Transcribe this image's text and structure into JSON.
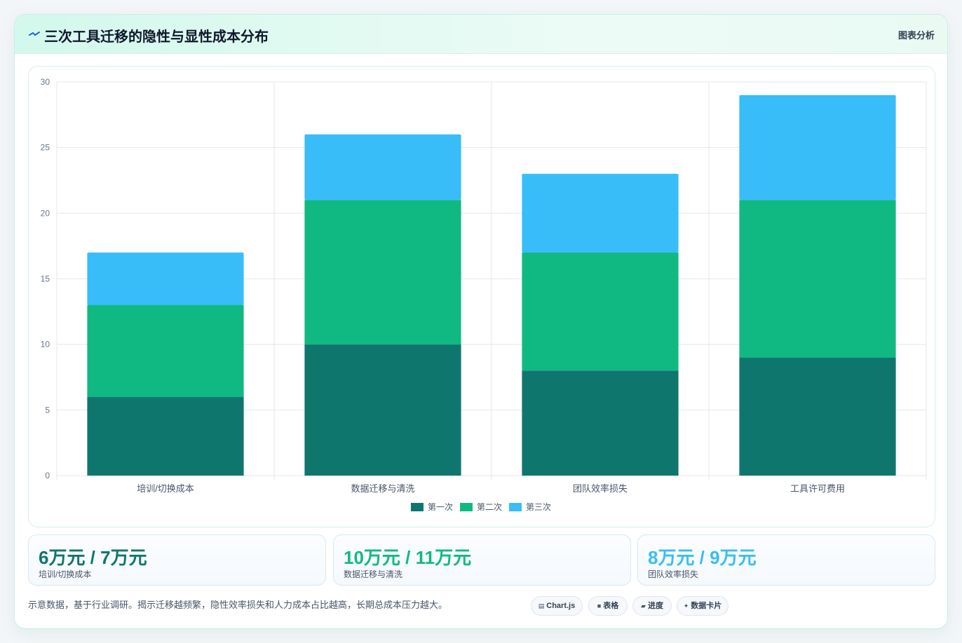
{
  "header": {
    "title": "三次工具迁移的隐性与显性成本分布",
    "tag": "图表分析",
    "icon": "lightning-icon"
  },
  "chart_data": {
    "type": "bar",
    "stacked": true,
    "categories": [
      "培训/切换成本",
      "数据迁移与清洗",
      "团队效率损失",
      "工具许可费用"
    ],
    "series": [
      {
        "name": "第一次",
        "color": "#0f766e",
        "values": [
          6,
          10,
          8,
          9
        ]
      },
      {
        "name": "第二次",
        "color": "#10b981",
        "values": [
          7,
          11,
          9,
          12
        ]
      },
      {
        "name": "第三次",
        "color": "#38bdf8",
        "values": [
          4,
          5,
          6,
          8
        ]
      }
    ],
    "ylim": [
      0,
      30
    ],
    "yticks": [
      0,
      5,
      10,
      15,
      20,
      25,
      30
    ],
    "grid": true,
    "legend": "bottom"
  },
  "stats": [
    {
      "value": "6万元 / 7万元",
      "label": "培训/切换成本",
      "color": "#0f766e"
    },
    {
      "value": "10万元 / 11万元",
      "label": "数据迁移与清洗",
      "color": "#10b981"
    },
    {
      "value": "8万元 / 9万元",
      "label": "团队效率损失",
      "color": "#38bdf8"
    }
  ],
  "footnote": "示意数据，基于行业调研。揭示迁移越频繁，隐性效率损失和人力成本占比越高，长期总成本压力越大。",
  "pills": [
    {
      "icon": "chart-icon",
      "glyph": "▤",
      "label": "Chart.js"
    },
    {
      "icon": "table-icon",
      "glyph": "■",
      "label": "表格"
    },
    {
      "icon": "progress-icon",
      "glyph": "▰",
      "label": "进度"
    },
    {
      "icon": "sparkle-icon",
      "glyph": "✦",
      "label": "数据卡片"
    }
  ]
}
